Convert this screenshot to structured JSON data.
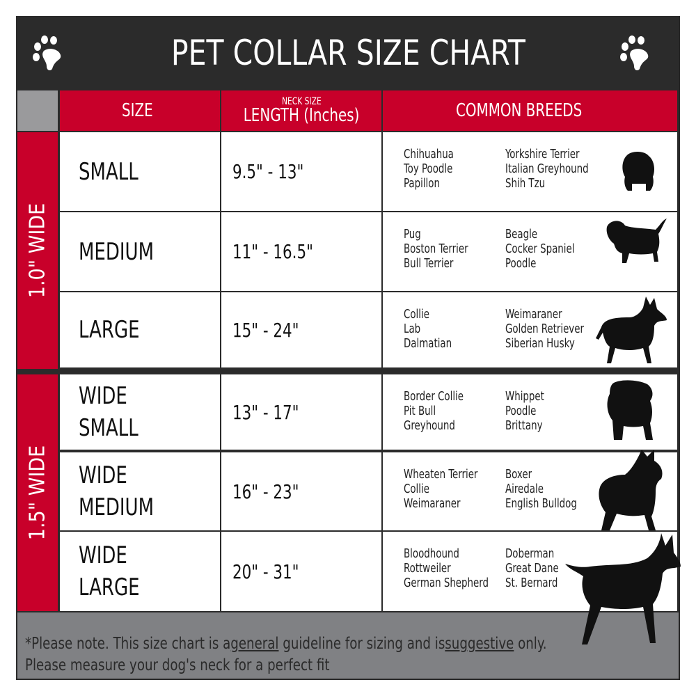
{
  "title": "PET COLLAR SIZE CHART",
  "icons": {
    "left": "paw-icon",
    "right": "paw-icon"
  },
  "colors": {
    "header": "#2b2b2b",
    "accent": "#c8002a",
    "footer": "#808184"
  },
  "columns": {
    "size": "SIZE",
    "length_small": "NECK SIZE",
    "length": "LENGTH (Inches)",
    "breeds": "COMMON BREEDS"
  },
  "groups": [
    {
      "label": "1.0\" WIDE"
    },
    {
      "label": "1.5\" WIDE"
    }
  ],
  "rows": [
    {
      "size": [
        "SMALL"
      ],
      "length": "9.5\" - 13\"",
      "breeds1": [
        "Chihuahua",
        "Toy Poodle",
        "Papillon"
      ],
      "breeds2": [
        "Yorkshire Terrier",
        "Italian Greyhound",
        "Shih Tzu"
      ]
    },
    {
      "size": [
        "MEDIUM"
      ],
      "length": "11\" - 16.5\"",
      "breeds1": [
        "Pug",
        "Boston Terrier",
        "Bull Terrier"
      ],
      "breeds2": [
        "Beagle",
        "Cocker Spaniel",
        "Poodle"
      ]
    },
    {
      "size": [
        "LARGE"
      ],
      "length": "15\" - 24\"",
      "breeds1": [
        "Collie",
        "Lab",
        "Dalmatian"
      ],
      "breeds2": [
        "Weimaraner",
        "Golden Retriever",
        "Siberian Husky"
      ]
    },
    {
      "size": [
        "WIDE",
        "SMALL"
      ],
      "length": "13\" - 17\"",
      "breeds1": [
        "Border Collie",
        "Pit Bull",
        "Greyhound"
      ],
      "breeds2": [
        "Whippet",
        "Poodle",
        "Brittany"
      ]
    },
    {
      "size": [
        "WIDE",
        "MEDIUM"
      ],
      "length": "16\" - 23\"",
      "breeds1": [
        "Wheaten Terrier",
        "Collie",
        "Weimaraner"
      ],
      "breeds2": [
        "Boxer",
        "Airedale",
        "English Bulldog"
      ]
    },
    {
      "size": [
        "WIDE",
        "LARGE"
      ],
      "length": "20\" - 31\"",
      "breeds1": [
        "Bloodhound",
        "Rottweiler",
        "German Shepherd"
      ],
      "breeds2": [
        "Doberman",
        "Great Dane",
        "St. Bernard"
      ]
    }
  ],
  "footer": {
    "p1": "*Please note. This size chart is a",
    "u1": "general",
    "p2": " guideline for sizing and is",
    "u2": "suggestive",
    "p3": " only.",
    "line2": "Please measure your dog's neck for a perfect fit"
  }
}
